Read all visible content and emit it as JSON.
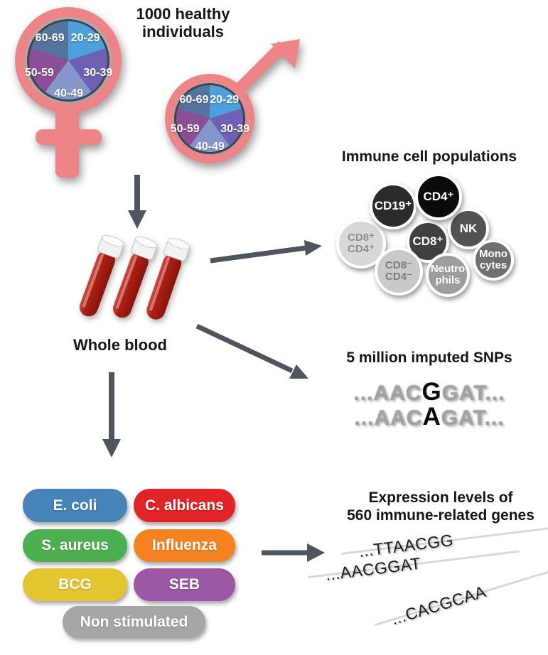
{
  "colors": {
    "salmon": "#ED8588",
    "arrow": "#4E555F",
    "pie_border": "#3F4651",
    "tube_red": "#AD1F15",
    "dot_green": "#5CB454",
    "dot_red": "#E05A5A",
    "dot_yellow": "#EFC52F",
    "dot_blue": "#57A3E9"
  },
  "header": {
    "line1": "1000 healthy",
    "line2": "individuals"
  },
  "demographics": {
    "age_groups": [
      {
        "label": "20-29",
        "color": "#4F9FDC"
      },
      {
        "label": "30-39",
        "color": "#6E61B3"
      },
      {
        "label": "40-49",
        "color": "#8497CB"
      },
      {
        "label": "50-59",
        "color": "#8C4E96"
      },
      {
        "label": "60-69",
        "color": "#54739D"
      }
    ]
  },
  "whole_blood": {
    "label": "Whole blood"
  },
  "immune_cells": {
    "heading": "Immune cell populations",
    "cells": [
      {
        "id": "cd8p-cd4p",
        "lines": [
          "CD8⁺",
          "CD4⁺"
        ],
        "bg": "#D8D8D8",
        "fg": "#8E8E8E"
      },
      {
        "id": "cd19p",
        "lines": [
          "CD19⁺"
        ],
        "bg": "#2B2B2B",
        "fg": "#FFFFFF"
      },
      {
        "id": "cd8p",
        "lines": [
          "CD8⁺"
        ],
        "bg": "#404040",
        "fg": "#FFFFFF"
      },
      {
        "id": "nk",
        "lines": [
          "NK"
        ],
        "bg": "#525252",
        "fg": "#FFFFFF"
      },
      {
        "id": "cd4p",
        "lines": [
          "CD4⁺"
        ],
        "bg": "#0A0A0A",
        "fg": "#FFFFFF"
      },
      {
        "id": "cd8m-cd4m",
        "lines": [
          "CD8⁻",
          "CD4⁻"
        ],
        "bg": "#C9C9C9",
        "fg": "#7E7E7E"
      },
      {
        "id": "neutrophils",
        "lines": [
          "Neutro",
          "phils"
        ],
        "bg": "#9D9D9D",
        "fg": "#FFFFFF"
      },
      {
        "id": "monocytes",
        "lines": [
          "Mono",
          "cytes"
        ],
        "bg": "#6F6F6F",
        "fg": "#FFFFFF"
      }
    ]
  },
  "snps": {
    "heading": "5 million imputed SNPs",
    "rows": [
      {
        "pre": "...AAC",
        "snp": "G",
        "post": "GAT..."
      },
      {
        "pre": "...AAC",
        "snp": "A",
        "post": "GAT..."
      }
    ]
  },
  "stimuli": {
    "items": [
      {
        "id": "ecoli",
        "label": "E. coli",
        "color": "#4583B8"
      },
      {
        "id": "calbicans",
        "label": "C. albicans",
        "color": "#E02428"
      },
      {
        "id": "saureus",
        "label": "S. aureus",
        "color": "#4CB050"
      },
      {
        "id": "influenza",
        "label": "Influenza",
        "color": "#F58220"
      },
      {
        "id": "bcg",
        "label": "BCG",
        "color": "#E2C52F"
      },
      {
        "id": "seb",
        "label": "SEB",
        "color": "#9C58A5"
      },
      {
        "id": "nonstim",
        "label": "Non stimulated",
        "color": "#A6A6A6"
      }
    ]
  },
  "expression": {
    "heading_line1": "Expression levels of",
    "heading_line2": "560 immune-related genes",
    "rows": [
      {
        "seq": "...TTAACGG",
        "dots": [
          "green",
          "red",
          "yellow",
          "blue",
          "blue"
        ]
      },
      {
        "seq": "...AACGGAT",
        "dots": [
          "red",
          "red",
          "yellow",
          "blue",
          "red"
        ]
      },
      {
        "seq": "...CACGCAA",
        "dots": [
          "green",
          "red",
          "blue",
          "red",
          "red"
        ]
      }
    ]
  }
}
